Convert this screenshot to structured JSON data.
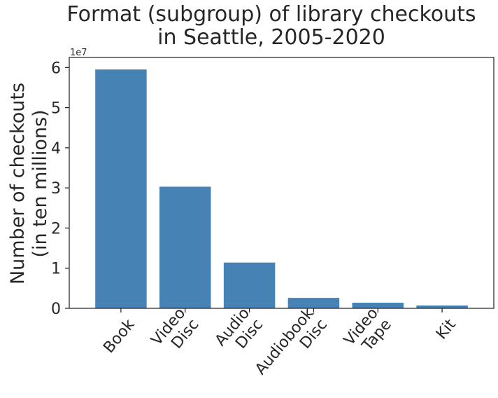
{
  "chart_data": {
    "type": "bar",
    "title_lines": [
      "Format (subgroup) of library checkouts",
      "in Seattle, 2005-2020"
    ],
    "ylabel_lines": [
      "Number of checkouts",
      "(in ten millions)"
    ],
    "xlabel": "",
    "categories": [
      [
        "Book"
      ],
      [
        "Video",
        "Disc"
      ],
      [
        "Audio",
        "Disc"
      ],
      [
        "Audiobook",
        "Disc"
      ],
      [
        "Video",
        "Tape"
      ],
      [
        "Kit"
      ]
    ],
    "values": [
      59500000,
      30300000,
      11400000,
      2600000,
      1400000,
      700000
    ],
    "ylim": [
      0,
      62500000
    ],
    "yticks": [
      0,
      10000000,
      20000000,
      30000000,
      40000000,
      50000000,
      60000000
    ],
    "ytick_labels": [
      "0",
      "1",
      "2",
      "3",
      "4",
      "5",
      "6"
    ],
    "y_offset_label": "1e7",
    "bar_color": "#4682b4",
    "grid": false,
    "legend": "none"
  }
}
